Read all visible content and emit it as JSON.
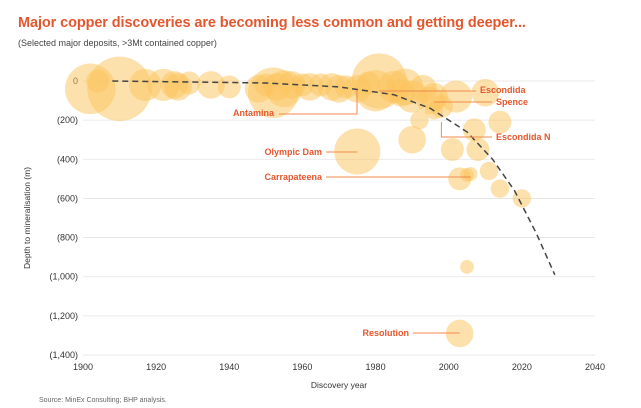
{
  "header": {
    "title": "Major copper discoveries are becoming less common and getting deeper...",
    "subtitle": "(Selected major deposits, >3Mt contained copper)"
  },
  "footer": {
    "source": "Source: MinEx Consulting; BHP analysis."
  },
  "colors": {
    "bubble": "#fbc45c",
    "annotation": "#e4572e",
    "leader": "#f08a4b",
    "trend": "#444444",
    "grid": "#e3e3e3"
  },
  "chart_data": {
    "type": "scatter",
    "subtype": "bubble",
    "title": "Major copper discoveries are becoming less common and getting deeper...",
    "subtitle": "(Selected major deposits, >3Mt contained copper)",
    "xlabel": "Discovery year",
    "ylabel": "Depth to mineralisation (m)",
    "xlim": [
      1900,
      2040
    ],
    "ylim": [
      0,
      1400
    ],
    "y_inverted": true,
    "grid": "horizontal",
    "xticks": [
      "1900",
      "1920",
      "1940",
      "1960",
      "1980",
      "2000",
      "2020",
      "2040"
    ],
    "yticks": [
      "0",
      "(200)",
      "(400)",
      "(600)",
      "(800)",
      "(1,000)",
      "(1,200)",
      "(1,400)"
    ],
    "ytick_values": [
      0,
      200,
      400,
      600,
      800,
      1000,
      1200,
      1400
    ],
    "points": [
      {
        "year": 1902,
        "depth": 40,
        "size": 11
      },
      {
        "year": 1904,
        "depth": 0,
        "size": 5
      },
      {
        "year": 1910,
        "depth": 40,
        "size": 14
      },
      {
        "year": 1917,
        "depth": 20,
        "size": 7
      },
      {
        "year": 1922,
        "depth": 20,
        "size": 7
      },
      {
        "year": 1925,
        "depth": 20,
        "size": 6
      },
      {
        "year": 1926,
        "depth": 30,
        "size": 6
      },
      {
        "year": 1929,
        "depth": 10,
        "size": 5
      },
      {
        "year": 1935,
        "depth": 20,
        "size": 6
      },
      {
        "year": 1940,
        "depth": 30,
        "size": 5
      },
      {
        "year": 1948,
        "depth": 40,
        "size": 6
      },
      {
        "year": 1950,
        "depth": 20,
        "size": 5
      },
      {
        "year": 1953,
        "depth": 30,
        "size": 6
      },
      {
        "year": 1955,
        "depth": 40,
        "size": 8
      },
      {
        "year": 1957,
        "depth": 20,
        "size": 6
      },
      {
        "year": 1960,
        "depth": 20,
        "size": 5
      },
      {
        "year": 1962,
        "depth": 30,
        "size": 6
      },
      {
        "year": 1965,
        "depth": 20,
        "size": 5
      },
      {
        "year": 1968,
        "depth": 30,
        "size": 6
      },
      {
        "year": 1970,
        "depth": 40,
        "size": 6
      },
      {
        "year": 1972,
        "depth": 30,
        "size": 5
      },
      {
        "year": 1975,
        "depth": 40,
        "size": 6
      },
      {
        "year": 1978,
        "depth": 10,
        "size": 5
      },
      {
        "year": 1980,
        "depth": 50,
        "size": 9
      },
      {
        "year": 1985,
        "depth": 30,
        "size": 7
      },
      {
        "year": 1987,
        "depth": 60,
        "size": 6
      },
      {
        "year": 1988,
        "depth": 30,
        "size": 8
      },
      {
        "year": 1990,
        "depth": 80,
        "size": 7
      },
      {
        "year": 1990,
        "depth": 300,
        "size": 6
      },
      {
        "year": 1992,
        "depth": 200,
        "size": 4
      },
      {
        "year": 1993,
        "depth": 40,
        "size": 6
      },
      {
        "year": 1995,
        "depth": 100,
        "size": 6
      },
      {
        "year": 1996,
        "depth": 150,
        "size": 4
      },
      {
        "year": 2002,
        "depth": 80,
        "size": 7
      },
      {
        "year": 2001,
        "depth": 350,
        "size": 5
      },
      {
        "year": 2003,
        "depth": 500,
        "size": 5
      },
      {
        "year": 2005,
        "depth": 480,
        "size": 3
      },
      {
        "year": 2005,
        "depth": 950,
        "size": 3
      },
      {
        "year": 2007,
        "depth": 250,
        "size": 5
      },
      {
        "year": 2008,
        "depth": 350,
        "size": 5
      },
      {
        "year": 2010,
        "depth": 60,
        "size": 6
      },
      {
        "year": 2011,
        "depth": 460,
        "size": 4
      },
      {
        "year": 2014,
        "depth": 210,
        "size": 5
      },
      {
        "year": 2014,
        "depth": 550,
        "size": 4
      },
      {
        "year": 2020,
        "depth": 600,
        "size": 4
      }
    ],
    "annotations": [
      {
        "label": "Escondida",
        "year": 1981,
        "depth": 0,
        "size": 12
      },
      {
        "label": "Spence",
        "year": 1996,
        "depth": 80,
        "size": 6
      },
      {
        "label": "Escondida N",
        "year": 1998,
        "depth": 130,
        "size": 5
      },
      {
        "label": "Antamina",
        "year": 1952,
        "depth": 60,
        "size": 11
      },
      {
        "label": "Olympic Dam",
        "year": 1975,
        "depth": 360,
        "size": 10
      },
      {
        "label": "Carrapateena",
        "year": 2006,
        "depth": 475,
        "size": 3
      },
      {
        "label": "Resolution",
        "year": 2003,
        "depth": 1290,
        "size": 6
      }
    ],
    "trendline": {
      "style": "dashed",
      "points": [
        [
          1908,
          0
        ],
        [
          1950,
          10
        ],
        [
          1970,
          30
        ],
        [
          1985,
          70
        ],
        [
          1995,
          140
        ],
        [
          2005,
          260
        ],
        [
          2012,
          400
        ],
        [
          2018,
          560
        ],
        [
          2024,
          780
        ],
        [
          2029,
          990
        ]
      ]
    }
  }
}
